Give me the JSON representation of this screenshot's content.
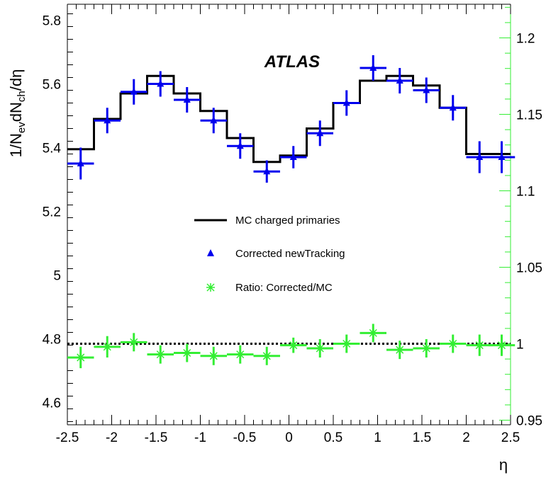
{
  "chart_data": {
    "type": "step+scatter",
    "title": "ATLAS",
    "xlabel": "η",
    "ylabel": "1/N_ev dN_ch/dη",
    "ylabel_parts": {
      "p1": "1/N",
      "sub1": "ev",
      "p2": "dN",
      "sub2": "ch",
      "p3": "/dη"
    },
    "xlim": [
      -2.5,
      2.5
    ],
    "ylim_left": [
      4.53,
      5.85
    ],
    "ylim_right": [
      0.947,
      1.222
    ],
    "x_ticks": [
      -2.5,
      -2,
      -1.5,
      -1,
      -0.5,
      0,
      0.5,
      1,
      1.5,
      2,
      2.5
    ],
    "x_tick_labels": [
      "-2.5",
      "-2",
      "-1.5",
      "-1",
      "-0.5",
      "0",
      "0.5",
      "1",
      "1.5",
      "2",
      "2.5"
    ],
    "y_left_ticks": [
      4.6,
      4.8,
      5,
      5.2,
      5.4,
      5.6,
      5.8
    ],
    "y_left_tick_labels": [
      "4.6",
      "4.8",
      "5",
      "5.2",
      "5.4",
      "5.6",
      "5.8"
    ],
    "y_right_ticks": [
      0.95,
      1,
      1.05,
      1.1,
      1.15,
      1.2
    ],
    "y_right_tick_labels": [
      "0.95",
      "1",
      "1.05",
      "1.1",
      "1.15",
      "1.2"
    ],
    "bin_edges": [
      -2.5,
      -2.2,
      -1.9,
      -1.6,
      -1.3,
      -1.0,
      -0.7,
      -0.4,
      -0.1,
      0.2,
      0.5,
      0.8,
      1.1,
      1.4,
      1.7,
      2.0,
      2.3,
      2.5
    ],
    "series": [
      {
        "name": "MC charged primaries",
        "style": "histogram-step",
        "color": "#000000",
        "axis": "left",
        "values": [
          5.395,
          5.49,
          5.57,
          5.625,
          5.57,
          5.515,
          5.43,
          5.355,
          5.375,
          5.46,
          5.54,
          5.61,
          5.625,
          5.595,
          5.525,
          5.38,
          5.38
        ]
      },
      {
        "name": "Corrected newTracking",
        "style": "triangle-markers",
        "color": "#0000ee",
        "axis": "left",
        "x": [
          -2.35,
          -2.05,
          -1.75,
          -1.45,
          -1.15,
          -0.85,
          -0.55,
          -0.25,
          0.05,
          0.35,
          0.65,
          0.95,
          1.25,
          1.55,
          1.85,
          2.15,
          2.4
        ],
        "values": [
          5.35,
          5.485,
          5.575,
          5.6,
          5.55,
          5.485,
          5.405,
          5.325,
          5.37,
          5.445,
          5.54,
          5.65,
          5.61,
          5.58,
          5.525,
          5.37,
          5.37
        ],
        "yerr": [
          0.05,
          0.04,
          0.04,
          0.04,
          0.04,
          0.04,
          0.04,
          0.035,
          0.035,
          0.04,
          0.04,
          0.04,
          0.04,
          0.04,
          0.04,
          0.05,
          0.05
        ]
      },
      {
        "name": "Ratio: Corrected/MC",
        "style": "star-markers",
        "color": "#33ee33",
        "axis": "right",
        "x": [
          -2.35,
          -2.05,
          -1.75,
          -1.45,
          -1.15,
          -0.85,
          -0.55,
          -0.25,
          0.05,
          0.35,
          0.65,
          0.95,
          1.25,
          1.55,
          1.85,
          2.15,
          2.4
        ],
        "values": [
          0.991,
          0.998,
          1.001,
          0.993,
          0.994,
          0.992,
          0.993,
          0.992,
          0.999,
          0.997,
          1.0,
          1.007,
          0.996,
          0.997,
          1.0,
          0.999,
          0.999
        ],
        "yerr": [
          0.007,
          0.007,
          0.006,
          0.006,
          0.006,
          0.006,
          0.006,
          0.006,
          0.005,
          0.006,
          0.006,
          0.006,
          0.006,
          0.006,
          0.006,
          0.007,
          0.007
        ]
      }
    ],
    "reference_line": {
      "value": 1.0,
      "axis": "right",
      "style": "dotted",
      "color": "#000000"
    },
    "legend": [
      {
        "label": "MC charged primaries",
        "symbol": "line"
      },
      {
        "label": "Corrected newTracking",
        "symbol": "triangle"
      },
      {
        "label": "Ratio: Corrected/MC",
        "symbol": "star"
      }
    ],
    "colors": {
      "left_axis": "#000000",
      "right_axis": "#33ee33"
    }
  }
}
